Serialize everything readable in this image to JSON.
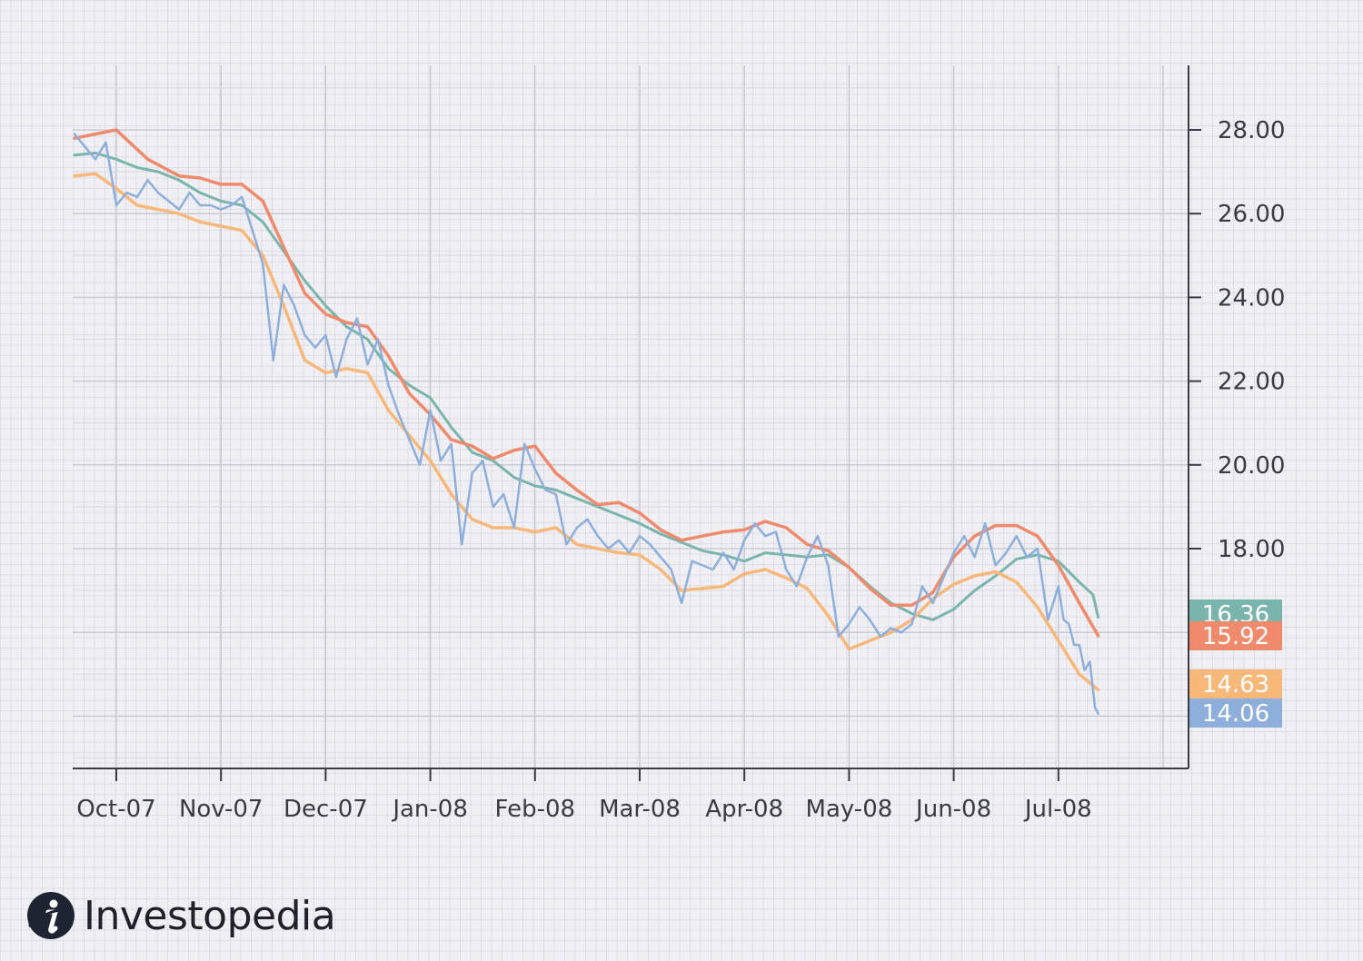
{
  "brand": {
    "name": "Investopedia",
    "logo_icon": "investopedia-logo-icon"
  },
  "chart_data": {
    "type": "line",
    "title": "",
    "xlabel": "",
    "ylabel": "",
    "x_tick_labels": [
      "Oct-07",
      "Nov-07",
      "Dec-07",
      "Jan-08",
      "Feb-08",
      "Mar-08",
      "Apr-08",
      "May-08",
      "Jun-08",
      "Jul-08"
    ],
    "y_tick_labels": [
      "28.00",
      "26.00",
      "24.00",
      "22.00",
      "20.00",
      "18.00"
    ],
    "y_ticks": [
      28,
      26,
      24,
      22,
      20,
      18
    ],
    "ylim": [
      12.8,
      29.5
    ],
    "xlim": [
      -0.4,
      10.0
    ],
    "y_axis_position": "right",
    "grid": true,
    "last_value_labels": [
      {
        "series": 0,
        "text": "16.36",
        "value": 16.36,
        "color": "#7ab5ad"
      },
      {
        "series": 1,
        "text": "15.92",
        "value": 15.92,
        "color": "#ef8a6c"
      },
      {
        "series": 2,
        "text": "14.63",
        "value": 14.63,
        "color": "#f7b87a"
      },
      {
        "series": 3,
        "text": "14.06",
        "value": 14.06,
        "color": "#8eaedb"
      }
    ],
    "series": [
      {
        "color": "#7ab5ad",
        "width": 3,
        "points": [
          [
            -0.4,
            27.4
          ],
          [
            -0.2,
            27.45
          ],
          [
            0,
            27.3
          ],
          [
            0.2,
            27.1
          ],
          [
            0.4,
            27.0
          ],
          [
            0.6,
            26.8
          ],
          [
            0.8,
            26.5
          ],
          [
            1.0,
            26.3
          ],
          [
            1.2,
            26.2
          ],
          [
            1.4,
            25.8
          ],
          [
            1.6,
            25.1
          ],
          [
            1.8,
            24.4
          ],
          [
            2.0,
            23.8
          ],
          [
            2.2,
            23.3
          ],
          [
            2.4,
            23.0
          ],
          [
            2.6,
            22.3
          ],
          [
            2.8,
            21.9
          ],
          [
            3.0,
            21.6
          ],
          [
            3.2,
            20.9
          ],
          [
            3.4,
            20.3
          ],
          [
            3.6,
            20.1
          ],
          [
            3.8,
            19.7
          ],
          [
            4.0,
            19.5
          ],
          [
            4.2,
            19.4
          ],
          [
            4.4,
            19.2
          ],
          [
            4.6,
            19.0
          ],
          [
            4.8,
            18.8
          ],
          [
            5.0,
            18.6
          ],
          [
            5.2,
            18.35
          ],
          [
            5.4,
            18.15
          ],
          [
            5.6,
            17.95
          ],
          [
            5.8,
            17.85
          ],
          [
            6.0,
            17.7
          ],
          [
            6.2,
            17.9
          ],
          [
            6.4,
            17.85
          ],
          [
            6.6,
            17.8
          ],
          [
            6.8,
            17.85
          ],
          [
            7.0,
            17.55
          ],
          [
            7.2,
            17.1
          ],
          [
            7.4,
            16.7
          ],
          [
            7.6,
            16.45
          ],
          [
            7.8,
            16.3
          ],
          [
            8.0,
            16.55
          ],
          [
            8.2,
            17.0
          ],
          [
            8.4,
            17.35
          ],
          [
            8.6,
            17.75
          ],
          [
            8.8,
            17.85
          ],
          [
            9.0,
            17.7
          ],
          [
            9.2,
            17.2
          ],
          [
            9.33,
            16.9
          ],
          [
            9.38,
            16.36
          ]
        ]
      },
      {
        "color": "#ef8a6c",
        "width": 3.5,
        "points": [
          [
            -0.4,
            27.8
          ],
          [
            -0.2,
            27.9
          ],
          [
            0,
            28.0
          ],
          [
            0.3,
            27.3
          ],
          [
            0.6,
            26.9
          ],
          [
            0.8,
            26.85
          ],
          [
            1.0,
            26.7
          ],
          [
            1.2,
            26.7
          ],
          [
            1.4,
            26.3
          ],
          [
            1.6,
            25.2
          ],
          [
            1.8,
            24.1
          ],
          [
            2.0,
            23.6
          ],
          [
            2.2,
            23.4
          ],
          [
            2.4,
            23.3
          ],
          [
            2.6,
            22.6
          ],
          [
            2.8,
            21.7
          ],
          [
            3.0,
            21.2
          ],
          [
            3.2,
            20.6
          ],
          [
            3.4,
            20.45
          ],
          [
            3.6,
            20.15
          ],
          [
            3.8,
            20.35
          ],
          [
            4.0,
            20.45
          ],
          [
            4.2,
            19.8
          ],
          [
            4.4,
            19.4
          ],
          [
            4.6,
            19.05
          ],
          [
            4.8,
            19.1
          ],
          [
            5.0,
            18.85
          ],
          [
            5.2,
            18.45
          ],
          [
            5.4,
            18.2
          ],
          [
            5.6,
            18.3
          ],
          [
            5.8,
            18.4
          ],
          [
            6.0,
            18.45
          ],
          [
            6.2,
            18.65
          ],
          [
            6.4,
            18.5
          ],
          [
            6.6,
            18.1
          ],
          [
            6.8,
            17.95
          ],
          [
            7.0,
            17.55
          ],
          [
            7.2,
            17.05
          ],
          [
            7.4,
            16.65
          ],
          [
            7.6,
            16.65
          ],
          [
            7.8,
            16.95
          ],
          [
            8.0,
            17.8
          ],
          [
            8.2,
            18.3
          ],
          [
            8.4,
            18.55
          ],
          [
            8.6,
            18.55
          ],
          [
            8.8,
            18.3
          ],
          [
            9.0,
            17.6
          ],
          [
            9.2,
            16.7
          ],
          [
            9.38,
            15.92
          ]
        ]
      },
      {
        "color": "#f7b87a",
        "width": 3.5,
        "points": [
          [
            -0.4,
            26.9
          ],
          [
            -0.2,
            26.95
          ],
          [
            0,
            26.6
          ],
          [
            0.2,
            26.2
          ],
          [
            0.4,
            26.1
          ],
          [
            0.6,
            26.0
          ],
          [
            0.8,
            25.8
          ],
          [
            1.0,
            25.7
          ],
          [
            1.2,
            25.6
          ],
          [
            1.4,
            25.0
          ],
          [
            1.6,
            23.8
          ],
          [
            1.8,
            22.5
          ],
          [
            2.0,
            22.2
          ],
          [
            2.2,
            22.3
          ],
          [
            2.4,
            22.2
          ],
          [
            2.6,
            21.3
          ],
          [
            2.8,
            20.7
          ],
          [
            3.0,
            20.1
          ],
          [
            3.2,
            19.3
          ],
          [
            3.4,
            18.7
          ],
          [
            3.6,
            18.5
          ],
          [
            3.8,
            18.5
          ],
          [
            4.0,
            18.4
          ],
          [
            4.2,
            18.5
          ],
          [
            4.4,
            18.1
          ],
          [
            4.6,
            18.0
          ],
          [
            4.8,
            17.9
          ],
          [
            5.0,
            17.85
          ],
          [
            5.2,
            17.5
          ],
          [
            5.4,
            17.0
          ],
          [
            5.6,
            17.05
          ],
          [
            5.8,
            17.1
          ],
          [
            6.0,
            17.4
          ],
          [
            6.2,
            17.5
          ],
          [
            6.4,
            17.3
          ],
          [
            6.6,
            17.05
          ],
          [
            6.8,
            16.4
          ],
          [
            7.0,
            15.6
          ],
          [
            7.2,
            15.8
          ],
          [
            7.4,
            16.0
          ],
          [
            7.6,
            16.3
          ],
          [
            7.8,
            16.8
          ],
          [
            8.0,
            17.15
          ],
          [
            8.2,
            17.35
          ],
          [
            8.4,
            17.45
          ],
          [
            8.6,
            17.2
          ],
          [
            8.8,
            16.6
          ],
          [
            9.0,
            15.8
          ],
          [
            9.2,
            15.0
          ],
          [
            9.38,
            14.63
          ]
        ]
      },
      {
        "color": "#8eaedb",
        "width": 2.5,
        "points": [
          [
            -0.4,
            27.9
          ],
          [
            -0.3,
            27.6
          ],
          [
            -0.2,
            27.3
          ],
          [
            -0.1,
            27.7
          ],
          [
            0,
            26.2
          ],
          [
            0.1,
            26.5
          ],
          [
            0.2,
            26.4
          ],
          [
            0.3,
            26.8
          ],
          [
            0.4,
            26.5
          ],
          [
            0.5,
            26.3
          ],
          [
            0.6,
            26.1
          ],
          [
            0.7,
            26.5
          ],
          [
            0.8,
            26.2
          ],
          [
            0.9,
            26.2
          ],
          [
            1.0,
            26.1
          ],
          [
            1.1,
            26.2
          ],
          [
            1.2,
            26.4
          ],
          [
            1.3,
            25.6
          ],
          [
            1.4,
            24.8
          ],
          [
            1.5,
            22.5
          ],
          [
            1.6,
            24.3
          ],
          [
            1.7,
            23.8
          ],
          [
            1.8,
            23.1
          ],
          [
            1.9,
            22.8
          ],
          [
            2.0,
            23.1
          ],
          [
            2.1,
            22.1
          ],
          [
            2.2,
            23.0
          ],
          [
            2.3,
            23.5
          ],
          [
            2.4,
            22.4
          ],
          [
            2.5,
            23.0
          ],
          [
            2.6,
            21.9
          ],
          [
            2.7,
            21.2
          ],
          [
            2.8,
            20.6
          ],
          [
            2.9,
            20.0
          ],
          [
            3.0,
            21.3
          ],
          [
            3.1,
            20.1
          ],
          [
            3.2,
            20.5
          ],
          [
            3.3,
            18.1
          ],
          [
            3.4,
            19.8
          ],
          [
            3.5,
            20.1
          ],
          [
            3.6,
            19.0
          ],
          [
            3.7,
            19.3
          ],
          [
            3.8,
            18.5
          ],
          [
            3.9,
            20.5
          ],
          [
            4.0,
            19.9
          ],
          [
            4.1,
            19.4
          ],
          [
            4.2,
            19.3
          ],
          [
            4.3,
            18.1
          ],
          [
            4.4,
            18.5
          ],
          [
            4.5,
            18.7
          ],
          [
            4.6,
            18.3
          ],
          [
            4.7,
            18.0
          ],
          [
            4.8,
            18.2
          ],
          [
            4.9,
            17.9
          ],
          [
            5.0,
            18.3
          ],
          [
            5.1,
            18.1
          ],
          [
            5.2,
            17.8
          ],
          [
            5.3,
            17.5
          ],
          [
            5.4,
            16.7
          ],
          [
            5.5,
            17.7
          ],
          [
            5.6,
            17.6
          ],
          [
            5.7,
            17.5
          ],
          [
            5.8,
            17.9
          ],
          [
            5.9,
            17.5
          ],
          [
            6.0,
            18.2
          ],
          [
            6.1,
            18.6
          ],
          [
            6.2,
            18.3
          ],
          [
            6.3,
            18.4
          ],
          [
            6.4,
            17.5
          ],
          [
            6.5,
            17.1
          ],
          [
            6.6,
            17.8
          ],
          [
            6.7,
            18.3
          ],
          [
            6.8,
            17.6
          ],
          [
            6.9,
            15.9
          ],
          [
            7.0,
            16.2
          ],
          [
            7.1,
            16.6
          ],
          [
            7.2,
            16.3
          ],
          [
            7.3,
            15.9
          ],
          [
            7.4,
            16.1
          ],
          [
            7.5,
            16.0
          ],
          [
            7.6,
            16.2
          ],
          [
            7.7,
            17.1
          ],
          [
            7.8,
            16.7
          ],
          [
            7.9,
            17.3
          ],
          [
            8.0,
            17.9
          ],
          [
            8.1,
            18.3
          ],
          [
            8.2,
            17.8
          ],
          [
            8.3,
            18.6
          ],
          [
            8.4,
            17.6
          ],
          [
            8.5,
            17.9
          ],
          [
            8.6,
            18.3
          ],
          [
            8.7,
            17.8
          ],
          [
            8.8,
            18.0
          ],
          [
            8.9,
            16.3
          ],
          [
            9.0,
            17.1
          ],
          [
            9.05,
            16.3
          ],
          [
            9.1,
            16.2
          ],
          [
            9.15,
            15.7
          ],
          [
            9.2,
            15.7
          ],
          [
            9.25,
            15.1
          ],
          [
            9.3,
            15.3
          ],
          [
            9.35,
            14.2
          ],
          [
            9.38,
            14.06
          ]
        ]
      }
    ]
  }
}
